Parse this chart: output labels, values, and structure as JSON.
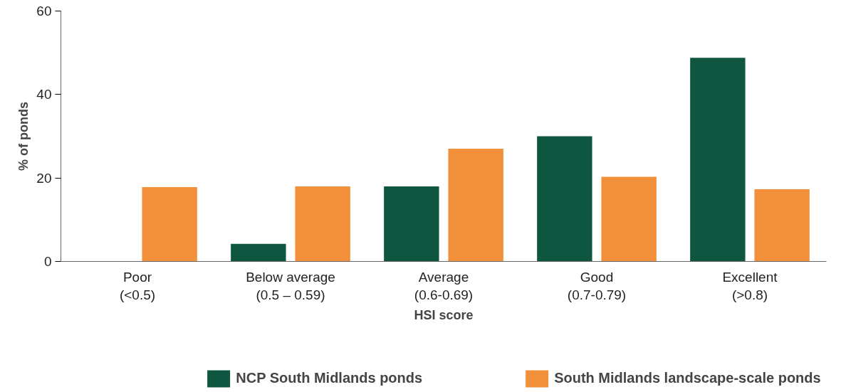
{
  "chart_data": {
    "type": "bar",
    "xlabel": "HSI score",
    "ylabel": "% of ponds",
    "categories": [
      "Poor\n(<0.5)",
      "Below average\n(0.5 – 0.59)",
      "Average\n(0.6-0.69)",
      "Good\n(0.7-0.79)",
      "Excellent\n(>0.8)"
    ],
    "series": [
      {
        "name": "NCP South Midlands ponds",
        "color": "#0f5641",
        "values": [
          0,
          4.2,
          18,
          30,
          48.8
        ]
      },
      {
        "name": "South Midlands landscape-scale ponds",
        "color": "#f28f3b",
        "values": [
          17.8,
          18,
          27,
          20.3,
          17.3
        ]
      }
    ],
    "ylim": [
      0,
      60
    ],
    "yticks": [
      0,
      20,
      40,
      60
    ],
    "grid": false,
    "legend": "bottom"
  }
}
